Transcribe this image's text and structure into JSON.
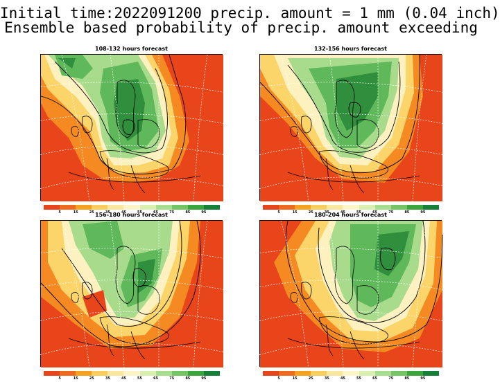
{
  "header": {
    "title_line1": "Initial time:2022091200 precip. amount = 1 mm (0.04 inch)",
    "title_line2": "Ensemble based probability of precip. amount exceeding"
  },
  "panels": [
    {
      "title": "108-132 hours forecast",
      "variant": "a"
    },
    {
      "title": "132-156 hours forecast",
      "variant": "b"
    },
    {
      "title": "156-180 hours forecast",
      "variant": "c"
    },
    {
      "title": "180-204 hours forecast",
      "variant": "d"
    }
  ],
  "colorbar": {
    "colors": [
      "#e8451a",
      "#f06a1e",
      "#f6a21f",
      "#fbcd5d",
      "#fde79c",
      "#fdf5c8",
      "#d9efb1",
      "#a7dd8d",
      "#72c465",
      "#3aa43d",
      "#16803a"
    ],
    "labels": [
      "5",
      "15",
      "25",
      "35",
      "45",
      "55",
      "65",
      "75",
      "85",
      "95"
    ]
  },
  "map_colors": {
    "red": "#e8451a",
    "orange": "#f58a22",
    "yellow": "#fbd56a",
    "cream": "#fdf1c0",
    "lightgreen": "#a8dc8c",
    "green": "#5fb85a",
    "darkgreen": "#2f8f3c"
  }
}
